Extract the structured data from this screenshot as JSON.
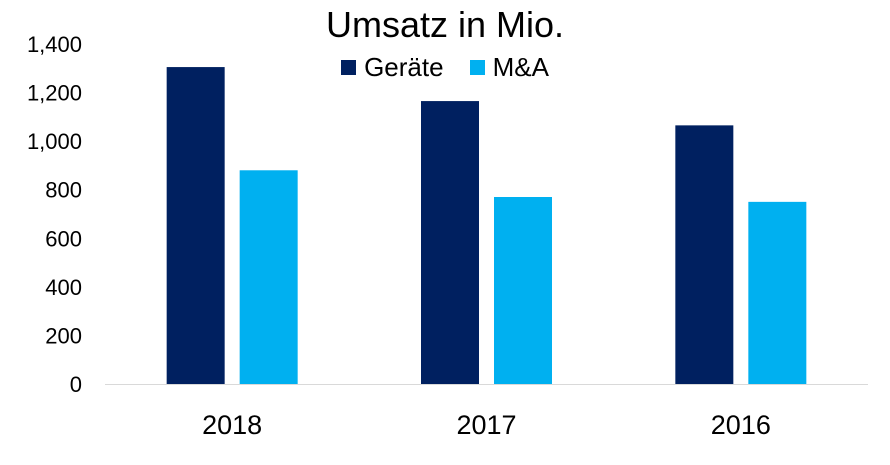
{
  "chart_data": {
    "type": "bar",
    "title": "Umsatz in Mio.",
    "categories": [
      "2018",
      "2017",
      "2016"
    ],
    "series": [
      {
        "name": "Geräte",
        "values": [
          1305,
          1165,
          1065
        ],
        "color": "#002060"
      },
      {
        "name": "M&A",
        "values": [
          880,
          770,
          750
        ],
        "color": "#00B0F0"
      }
    ],
    "ylim": [
      0,
      1400
    ],
    "yticks": [
      "0",
      "200",
      "400",
      "600",
      "800",
      "1,000",
      "1,200",
      "1,400"
    ],
    "xlabel": "",
    "ylabel": "",
    "grid": false,
    "legend_position": "top"
  }
}
